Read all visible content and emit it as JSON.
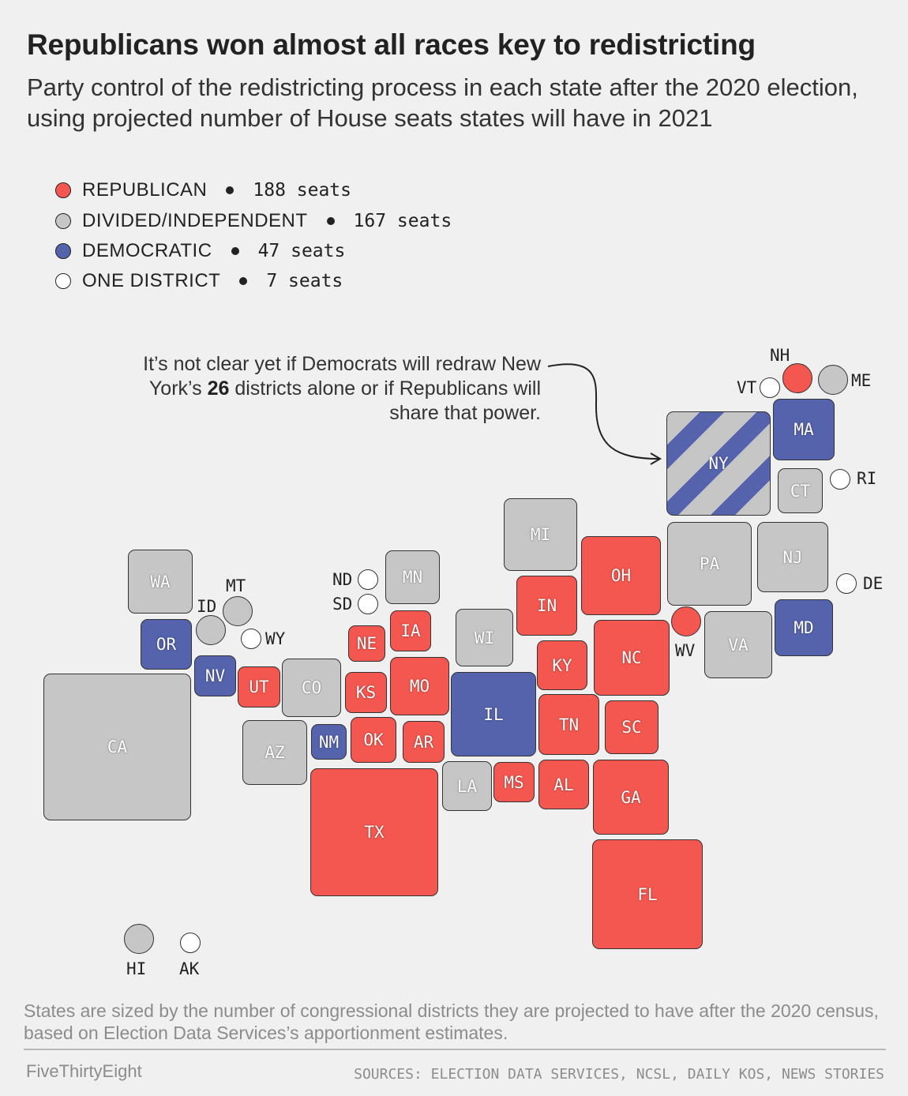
{
  "title": "Republicans won almost all races key to redistricting",
  "subtitle": "Party control of the redistricting process in each state after the 2020 election, using projected number of House seats states will have in 2021",
  "colors": {
    "republican": "#f4574f",
    "divided": "#c6c6c6",
    "democratic": "#5563ad",
    "one_district": "#ffffff"
  },
  "legend": [
    {
      "label": "REPUBLICAN",
      "seats": "188 seats",
      "color": "#f4574f"
    },
    {
      "label": "DIVIDED/INDEPENDENT",
      "seats": "167 seats",
      "color": "#c6c6c6"
    },
    {
      "label": "DEMOCRATIC",
      "seats": "47 seats",
      "color": "#5563ad"
    },
    {
      "label": "ONE DISTRICT",
      "seats": "7 seats",
      "color": "#ffffff"
    }
  ],
  "annotation": {
    "before": "It’s not clear yet if Democrats will redraw New York’s ",
    "bold": "26",
    "after": " districts alone or if Republicans will share that power."
  },
  "states": {
    "WA": "WA",
    "OR": "OR",
    "CA": "CA",
    "NV": "NV",
    "UT": "UT",
    "CO": "CO",
    "AZ": "AZ",
    "NM": "NM",
    "MN": "MN",
    "NE": "NE",
    "IA": "IA",
    "KS": "KS",
    "MO": "MO",
    "OK": "OK",
    "AR": "AR",
    "TX": "TX",
    "WI": "WI",
    "IL": "IL",
    "LA": "LA",
    "MS": "MS",
    "AL": "AL",
    "MI": "MI",
    "IN": "IN",
    "KY": "KY",
    "TN": "TN",
    "OH": "OH",
    "NC": "NC",
    "SC": "SC",
    "GA": "GA",
    "FL": "FL",
    "PA": "PA",
    "VA": "VA",
    "NJ": "NJ",
    "MD": "MD",
    "NY": "NY",
    "MA": "MA",
    "CT": "CT"
  },
  "small_states": {
    "ID": "ID",
    "MT": "MT",
    "WY": "WY",
    "ND": "ND",
    "SD": "SD",
    "WV": "WV",
    "DE": "DE",
    "RI": "RI",
    "VT": "VT",
    "NH": "NH",
    "ME": "ME",
    "HI": "HI",
    "AK": "AK"
  },
  "note": "States are sized by the number of congressional districts they are projected to have after the 2020 census, based on Election Data Services’s apportionment estimates.",
  "brand": "FiveThirtyEight",
  "sources": "SOURCES: ELECTION DATA SERVICES, NCSL, DAILY KOS, NEWS STORIES"
}
